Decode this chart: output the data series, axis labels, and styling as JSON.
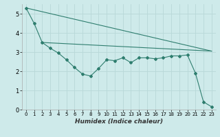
{
  "xlabel": "Humidex (Indice chaleur)",
  "background_color": "#ceeaea",
  "grid_color": "#b8d8d8",
  "line_color": "#2e7d6e",
  "xlim": [
    -0.5,
    23.5
  ],
  "ylim": [
    0,
    5.5
  ],
  "yticks": [
    0,
    1,
    2,
    3,
    4,
    5
  ],
  "xticks": [
    0,
    1,
    2,
    3,
    4,
    5,
    6,
    7,
    8,
    9,
    10,
    11,
    12,
    13,
    14,
    15,
    16,
    17,
    18,
    19,
    20,
    21,
    22,
    23
  ],
  "line1_x": [
    0,
    1,
    2,
    3,
    4,
    5,
    6,
    7,
    8,
    9,
    10,
    11,
    12,
    13,
    14,
    15,
    16,
    17,
    18,
    19,
    20,
    21,
    22,
    23
  ],
  "line1_y": [
    5.3,
    4.5,
    3.5,
    3.2,
    2.95,
    2.6,
    2.2,
    1.85,
    1.75,
    2.15,
    2.6,
    2.55,
    2.7,
    2.45,
    2.7,
    2.7,
    2.65,
    2.7,
    2.8,
    2.8,
    2.85,
    1.9,
    0.4,
    0.15
  ],
  "line2_x": [
    0,
    23
  ],
  "line2_y": [
    5.3,
    3.05
  ],
  "line3_x": [
    2,
    23
  ],
  "line3_y": [
    3.5,
    3.05
  ]
}
